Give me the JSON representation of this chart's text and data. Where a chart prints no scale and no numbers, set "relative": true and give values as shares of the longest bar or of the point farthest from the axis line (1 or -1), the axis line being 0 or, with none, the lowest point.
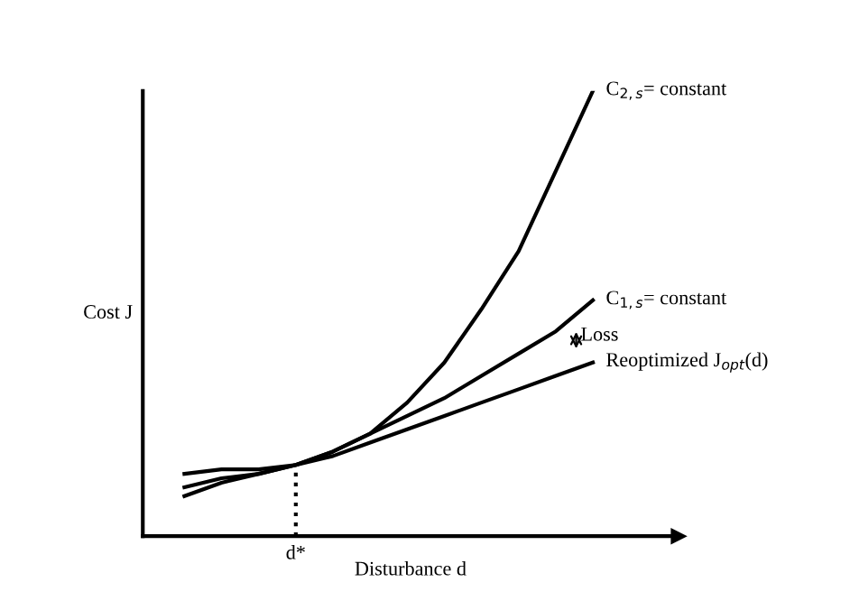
{
  "chart_data": {
    "type": "line",
    "relative": true,
    "xlabel": "Disturbance d",
    "ylabel": "Cost J",
    "categories": [
      null,
      null,
      null,
      null,
      null,
      null,
      null,
      null,
      null,
      null,
      null,
      null
    ],
    "series": [
      {
        "name": "C$_{2,s}$= constant",
        "color": "#000000",
        "values": [
          0.14,
          0.15,
          0.15,
          0.16,
          0.19,
          0.23,
          0.3,
          0.39,
          0.51,
          0.64,
          0.82,
          1
        ]
      },
      {
        "name": "C$_{1,s}$= constant",
        "color": "#000000",
        "values": [
          0.11,
          0.13,
          0.14,
          0.16,
          0.19,
          0.23,
          0.27,
          0.31,
          0.36,
          0.41,
          0.46,
          0.53
        ]
      },
      {
        "name": "Reoptimized J$_{opt}$(d)",
        "color": "#000000",
        "values": [
          0.09,
          0.12,
          0.14,
          0.16,
          0.18,
          0.21,
          0.24,
          0.27,
          0.3,
          0.33,
          0.36,
          0.39
        ]
      }
    ],
    "annotations": [
      "d*",
      "Loss"
    ],
    "marker": "none",
    "line_style": "solid"
  }
}
